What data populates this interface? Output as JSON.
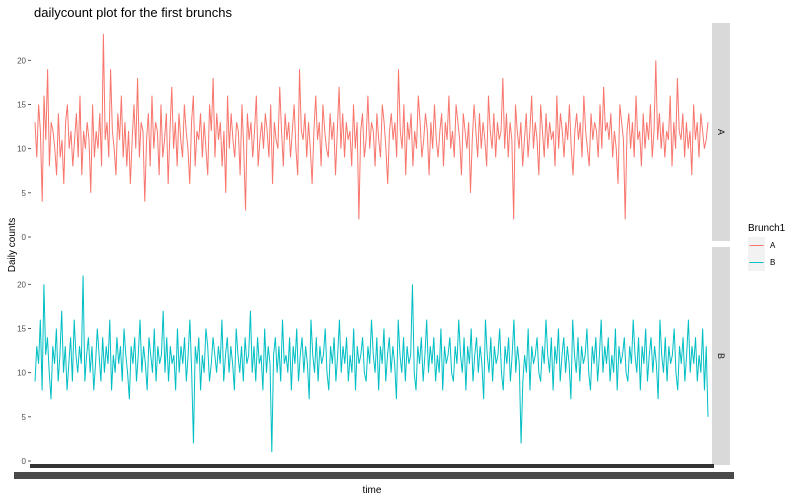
{
  "chart_data": {
    "type": "line",
    "title": "dailycount plot for the first brunchs",
    "xlabel": "time",
    "ylabel": "Daily counts",
    "ylim": [
      0,
      24
    ],
    "y_ticks": [
      0,
      5,
      10,
      15,
      20
    ],
    "grid": false,
    "legend": {
      "title": "Brunch1",
      "position": "right"
    },
    "facets": [
      "A",
      "B"
    ],
    "series": [
      {
        "name": "A",
        "color": "#F8766D",
        "values": [
          13,
          9,
          15,
          12,
          4,
          16,
          11,
          19,
          8,
          13,
          12,
          10,
          7,
          14,
          9,
          11,
          6,
          13,
          15,
          10,
          12,
          8,
          11,
          14,
          9,
          16,
          7,
          12,
          10,
          13,
          11,
          5,
          15,
          9,
          12,
          10,
          14,
          8,
          23,
          11,
          13,
          9,
          19,
          12,
          10,
          7,
          14,
          11,
          16,
          9,
          13,
          8,
          12,
          6,
          11,
          15,
          10,
          18,
          9,
          13,
          12,
          4,
          11,
          14,
          8,
          16,
          10,
          13,
          12,
          7,
          15,
          9,
          11,
          14,
          6,
          12,
          17,
          10,
          13,
          8,
          14,
          11,
          9,
          15,
          12,
          10,
          6,
          13,
          16,
          8,
          12,
          11,
          14,
          9,
          13,
          10,
          7,
          15,
          12,
          18,
          9,
          14,
          11,
          13,
          8,
          12,
          5,
          16,
          10,
          14,
          11,
          9,
          13,
          12,
          7,
          15,
          10,
          3,
          14,
          11,
          13,
          9,
          12,
          16,
          8,
          11,
          13,
          10,
          14,
          12,
          9,
          15,
          6,
          13,
          11,
          10,
          17,
          12,
          8,
          14,
          11,
          13,
          9,
          12,
          15,
          10,
          7,
          19,
          12,
          11,
          14,
          9,
          13,
          10,
          6,
          12,
          16,
          11,
          13,
          8,
          15,
          12,
          10,
          9,
          14,
          11,
          13,
          7,
          12,
          17,
          10,
          14,
          9,
          13,
          11,
          12,
          8,
          15,
          10,
          13,
          2,
          12,
          14,
          9,
          11,
          16,
          10,
          13,
          12,
          8,
          14,
          11,
          9,
          15,
          13,
          10,
          6,
          12,
          14,
          11,
          13,
          9,
          19,
          12,
          10,
          15,
          7,
          13,
          11,
          14,
          8,
          12,
          10,
          16,
          13,
          9,
          11,
          14,
          12,
          7,
          13,
          10,
          15,
          11,
          9,
          12,
          14,
          8,
          13,
          11,
          16,
          10,
          12,
          9,
          15,
          13,
          11,
          7,
          14,
          12,
          10,
          13,
          5,
          11,
          15,
          12,
          9,
          14,
          10,
          13,
          11,
          8,
          16,
          12,
          10,
          14,
          9,
          13,
          11,
          12,
          18,
          10,
          14,
          9,
          13,
          11,
          2,
          15,
          12,
          10,
          13,
          8,
          11,
          14,
          9,
          12,
          16,
          10,
          13,
          11,
          7,
          15,
          12,
          9,
          14,
          10,
          13,
          11,
          12,
          8,
          16,
          10,
          14,
          12,
          9,
          13,
          11,
          15,
          10,
          7,
          12,
          14,
          11,
          13,
          9,
          16,
          12,
          10,
          8,
          14,
          11,
          13,
          12,
          9,
          15,
          10,
          17,
          12,
          13,
          11,
          14,
          9,
          12,
          10,
          6,
          15,
          13,
          11,
          2,
          12,
          14,
          10,
          13,
          9,
          16,
          11,
          12,
          8,
          14,
          10,
          13,
          11,
          15,
          9,
          12,
          20,
          11,
          14,
          10,
          13,
          9,
          12,
          11,
          16,
          8,
          13,
          10,
          18,
          12,
          11,
          14,
          9,
          13,
          10,
          12,
          7,
          15,
          11,
          13,
          9,
          14,
          12,
          10,
          11,
          13
        ],
        "note_values": ""
      },
      {
        "name": "B",
        "color": "#00BFC4",
        "values": [
          9,
          13,
          11,
          16,
          8,
          20,
          12,
          14,
          10,
          7,
          13,
          11,
          15,
          9,
          12,
          17,
          10,
          13,
          8,
          11,
          14,
          9,
          16,
          12,
          10,
          13,
          11,
          21,
          9,
          12,
          14,
          10,
          13,
          8,
          11,
          15,
          12,
          9,
          14,
          10,
          13,
          11,
          16,
          8,
          12,
          10,
          14,
          11,
          13,
          9,
          15,
          12,
          10,
          7,
          13,
          11,
          14,
          9,
          12,
          16,
          10,
          13,
          11,
          8,
          14,
          12,
          10,
          15,
          9,
          13,
          11,
          12,
          17,
          10,
          14,
          9,
          13,
          11,
          12,
          8,
          15,
          10,
          13,
          11,
          14,
          9,
          12,
          16,
          10,
          2,
          13,
          11,
          14,
          8,
          12,
          10,
          15,
          13,
          9,
          11,
          14,
          12,
          10,
          13,
          11,
          16,
          9,
          12,
          14,
          10,
          13,
          11,
          8,
          15,
          12,
          10,
          13,
          9,
          14,
          11,
          12,
          17,
          10,
          13,
          9,
          14,
          11,
          12,
          8,
          15,
          10,
          13,
          11,
          1,
          12,
          14,
          10,
          13,
          9,
          16,
          11,
          12,
          10,
          14,
          8,
          13,
          11,
          15,
          9,
          12,
          14,
          10,
          13,
          11,
          7,
          16,
          12,
          10,
          14,
          9,
          13,
          11,
          12,
          15,
          10,
          8,
          13,
          11,
          14,
          9,
          12,
          16,
          10,
          13,
          11,
          14,
          9,
          12,
          10,
          15,
          8,
          13,
          11,
          12,
          14,
          10,
          9,
          13,
          11,
          16,
          12,
          10,
          14,
          8,
          13,
          11,
          15,
          9,
          12,
          14,
          10,
          13,
          11,
          7,
          16,
          12,
          10,
          14,
          9,
          13,
          11,
          12,
          20,
          10,
          8,
          13,
          11,
          14,
          9,
          12,
          16,
          10,
          13,
          11,
          14,
          9,
          12,
          10,
          15,
          8,
          13,
          11,
          12,
          14,
          10,
          9,
          13,
          11,
          16,
          12,
          10,
          14,
          8,
          13,
          11,
          15,
          9,
          12,
          14,
          10,
          13,
          11,
          7,
          16,
          12,
          10,
          14,
          9,
          13,
          11,
          12,
          15,
          10,
          8,
          13,
          11,
          14,
          9,
          12,
          16,
          10,
          13,
          11,
          2,
          9,
          12,
          10,
          15,
          8,
          13,
          11,
          12,
          14,
          10,
          9,
          13,
          11,
          16,
          12,
          10,
          14,
          8,
          13,
          11,
          15,
          9,
          12,
          14,
          10,
          13,
          11,
          7,
          16,
          12,
          10,
          14,
          9,
          13,
          11,
          12,
          15,
          10,
          8,
          13,
          11,
          14,
          9,
          12,
          16,
          10,
          13,
          11,
          14,
          9,
          12,
          10,
          15,
          8,
          13,
          11,
          12,
          14,
          10,
          9,
          13,
          11,
          16,
          12,
          10,
          14,
          8,
          13,
          11,
          15,
          9,
          12,
          14,
          10,
          13,
          11,
          7,
          16,
          12,
          10,
          14,
          9,
          13,
          11,
          12,
          15,
          10,
          8,
          13,
          11,
          14,
          9,
          12,
          16,
          10,
          13,
          11,
          14,
          9,
          12,
          10,
          15,
          8,
          13,
          5
        ]
      }
    ]
  },
  "x_tick_hint": "overlapping date labels (illegible)"
}
